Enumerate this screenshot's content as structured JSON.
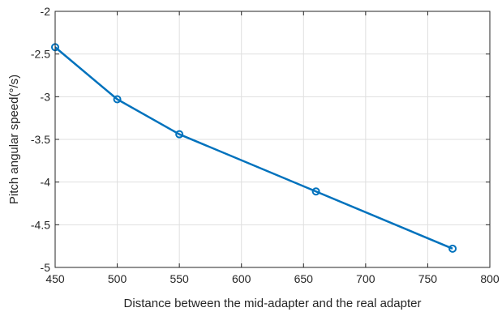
{
  "chart_data": {
    "type": "line",
    "title": "",
    "xlabel": "Distance between the mid-adapter and the real adapter",
    "ylabel": "Pitch angular speed(°/s)",
    "xlim": [
      450,
      800
    ],
    "ylim": [
      -5,
      -2
    ],
    "xticks": [
      450,
      500,
      550,
      600,
      650,
      700,
      750,
      800
    ],
    "yticks": [
      -5,
      -4.5,
      -4,
      -3.5,
      -3,
      -2.5,
      -2
    ],
    "xtick_labels": [
      "450",
      "500",
      "550",
      "600",
      "650",
      "700",
      "750",
      "800"
    ],
    "ytick_labels": [
      "-5",
      "-4.5",
      "-4",
      "-3.5",
      "-3",
      "-2.5",
      "-2"
    ],
    "grid": true,
    "series": [
      {
        "color": "#0072BD",
        "marker": "circle",
        "x": [
          450,
          500,
          550,
          660,
          770
        ],
        "y": [
          -2.42,
          -3.03,
          -3.44,
          -4.11,
          -4.78
        ]
      }
    ]
  }
}
